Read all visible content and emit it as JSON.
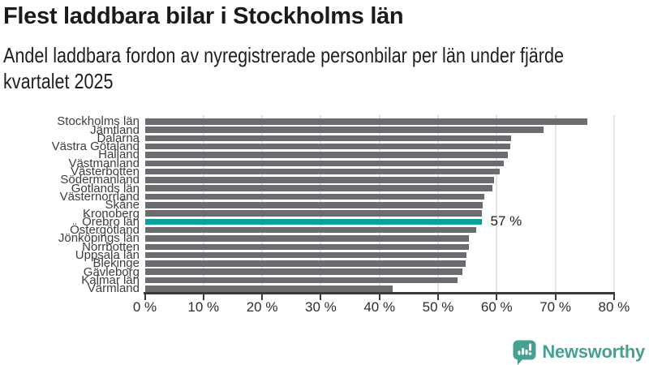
{
  "title": "Flest laddbara bilar i Stockholms län",
  "subtitle_lines": [
    "Andel laddbara fordon av nyregistrerade personbilar per län under fjärde",
    "kvartalet 2025"
  ],
  "chart_data": {
    "type": "bar",
    "orientation": "horizontal",
    "title": "Flest laddbara bilar i Stockholms län",
    "xlabel": "",
    "ylabel": "",
    "xlim": [
      0,
      80
    ],
    "x_tick_labels": [
      "0 %",
      "10 %",
      "20 %",
      "30 %",
      "40 %",
      "50 %",
      "60 %",
      "70 %",
      "80 %"
    ],
    "grid": "vertical",
    "unit": "%",
    "categories": [
      "Stockholms län",
      "Jämtland",
      "Dalarna",
      "Västra Götaland",
      "Halland",
      "Västmanland",
      "Västerbotten",
      "Södermanland",
      "Gotlands län",
      "Västernorrland",
      "Skåne",
      "Kronoberg",
      "Örebro län",
      "Östergötland",
      "Jönköpings län",
      "Norrbotten",
      "Uppsala län",
      "Blekinge",
      "Gävleborg",
      "Kalmar län",
      "Värmland"
    ],
    "values": [
      75.5,
      68,
      62.5,
      62.3,
      61.9,
      61.2,
      60.5,
      59.6,
      59.3,
      57.9,
      57.6,
      57.5,
      57.4,
      56.5,
      55.3,
      55.2,
      54.9,
      54.7,
      54.2,
      53.3,
      42.3
    ],
    "highlight": {
      "category": "Örebro län",
      "index": 12,
      "value_label": "57 %"
    },
    "colors": {
      "bar": "#6b6b70",
      "highlight_bar": "#0aa19a",
      "gridline": "#e4e4e4",
      "axis": "#3a3a3a"
    }
  },
  "branding": {
    "name": "Newsworthy",
    "icon": "bar-chart-speech-bubble-icon",
    "color": "#47a090"
  }
}
